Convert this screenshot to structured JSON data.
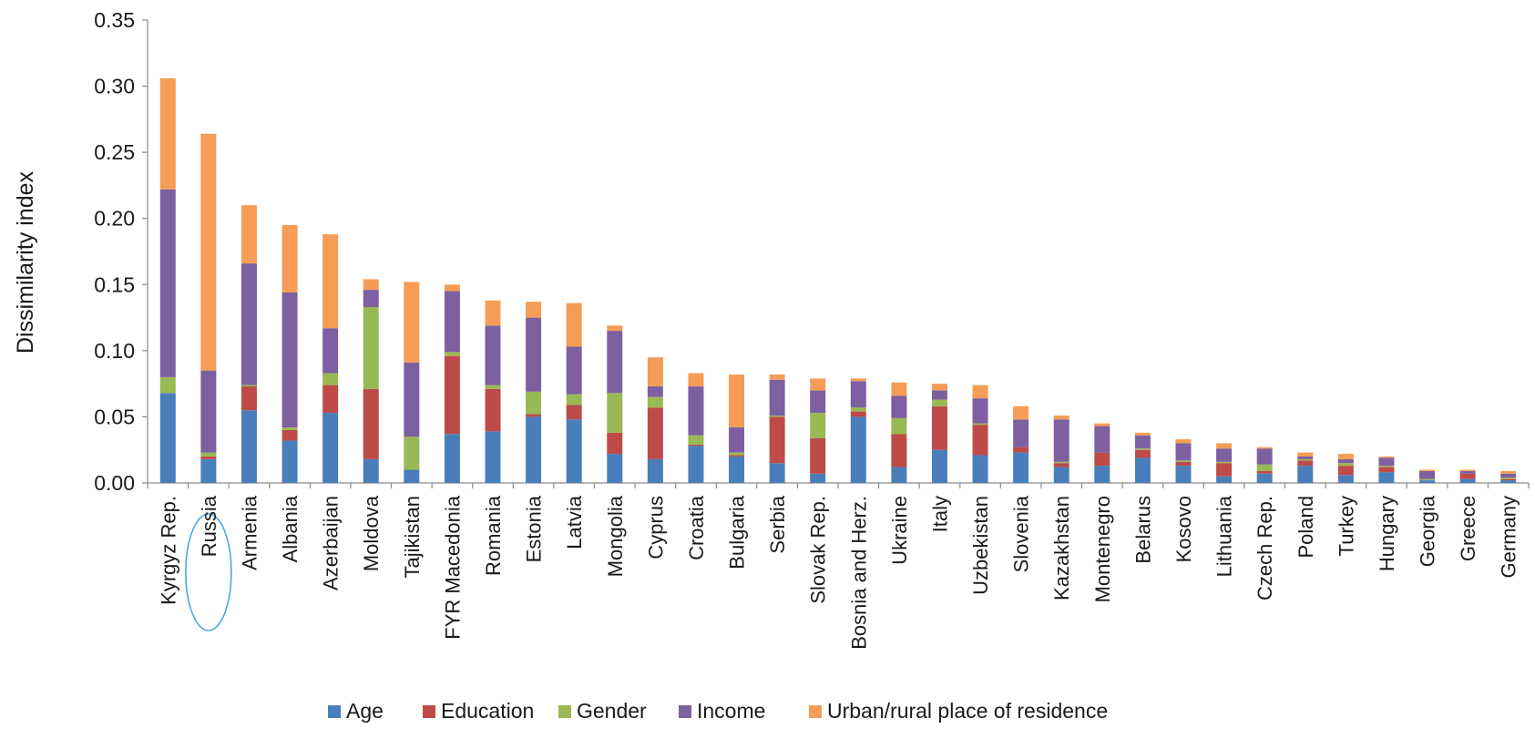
{
  "chart_data": {
    "type": "bar",
    "stacked": true,
    "title": "",
    "xlabel": "",
    "ylabel": "Dissimilarity index",
    "ylim": [
      0,
      0.35
    ],
    "yticks": [
      "0.00",
      "0.05",
      "0.10",
      "0.15",
      "0.20",
      "0.25",
      "0.30",
      "0.35"
    ],
    "grid": false,
    "legend_position": "bottom",
    "highlighted_category": "Russia",
    "categories": [
      "Kyrgyz Rep.",
      "Russia",
      "Armenia",
      "Albania",
      "Azerbaijan",
      "Moldova",
      "Tajikistan",
      "FYR Macedonia",
      "Romania",
      "Estonia",
      "Latvia",
      "Mongolia",
      "Cyprus",
      "Croatia",
      "Bulgaria",
      "Serbia",
      "Slovak Rep.",
      "Bosnia and Herz.",
      "Ukraine",
      "Italy",
      "Uzbekistan",
      "Slovenia",
      "Kazakhstan",
      "Montenegro",
      "Belarus",
      "Kosovo",
      "Lithuania",
      "Czech Rep.",
      "Poland",
      "Turkey",
      "Hungary",
      "Georgia",
      "Greece",
      "Germany"
    ],
    "series": [
      {
        "name": "Age",
        "color": "#4a7ebb",
        "values": [
          0.068,
          0.018,
          0.055,
          0.032,
          0.053,
          0.018,
          0.01,
          0.037,
          0.039,
          0.05,
          0.048,
          0.022,
          0.018,
          0.028,
          0.02,
          0.015,
          0.007,
          0.05,
          0.012,
          0.025,
          0.021,
          0.023,
          0.012,
          0.013,
          0.019,
          0.013,
          0.005,
          0.007,
          0.013,
          0.006,
          0.008,
          0.002,
          0.003,
          0.002
        ]
      },
      {
        "name": "Education",
        "color": "#be4b48",
        "values": [
          0.0,
          0.002,
          0.018,
          0.008,
          0.021,
          0.053,
          0.0,
          0.059,
          0.032,
          0.002,
          0.011,
          0.016,
          0.039,
          0.001,
          0.001,
          0.035,
          0.027,
          0.004,
          0.025,
          0.033,
          0.023,
          0.004,
          0.003,
          0.01,
          0.006,
          0.003,
          0.01,
          0.002,
          0.004,
          0.007,
          0.004,
          0.0,
          0.004,
          0.001
        ]
      },
      {
        "name": "Gender",
        "color": "#98b954",
        "values": [
          0.012,
          0.003,
          0.001,
          0.002,
          0.009,
          0.062,
          0.025,
          0.003,
          0.003,
          0.017,
          0.008,
          0.03,
          0.008,
          0.007,
          0.002,
          0.001,
          0.019,
          0.003,
          0.012,
          0.005,
          0.001,
          0.0,
          0.001,
          0.0,
          0.001,
          0.001,
          0.001,
          0.005,
          0.001,
          0.002,
          0.001,
          0.001,
          0.0,
          0.001
        ]
      },
      {
        "name": "Income",
        "color": "#7d60a0",
        "values": [
          0.142,
          0.062,
          0.092,
          0.102,
          0.034,
          0.013,
          0.056,
          0.046,
          0.045,
          0.056,
          0.036,
          0.047,
          0.008,
          0.037,
          0.019,
          0.027,
          0.017,
          0.02,
          0.017,
          0.007,
          0.019,
          0.021,
          0.032,
          0.02,
          0.01,
          0.013,
          0.01,
          0.012,
          0.002,
          0.003,
          0.006,
          0.006,
          0.002,
          0.003
        ]
      },
      {
        "name": "Urban/rural place of residence",
        "color": "#f59d56",
        "values": [
          0.084,
          0.179,
          0.044,
          0.051,
          0.071,
          0.008,
          0.061,
          0.005,
          0.019,
          0.012,
          0.033,
          0.004,
          0.022,
          0.01,
          0.04,
          0.004,
          0.009,
          0.002,
          0.01,
          0.005,
          0.01,
          0.01,
          0.003,
          0.002,
          0.002,
          0.003,
          0.004,
          0.001,
          0.003,
          0.004,
          0.001,
          0.001,
          0.001,
          0.002
        ]
      }
    ]
  }
}
